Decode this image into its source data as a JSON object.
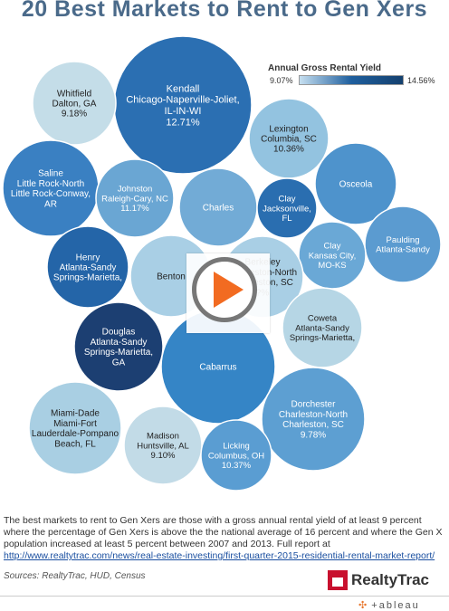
{
  "title": "20 Best Markets to Rent to Gen Xers",
  "legend": {
    "title": "Annual Gross Rental Yield",
    "min_label": "9.07%",
    "max_label": "14.56%"
  },
  "chart_data": {
    "type": "bubble",
    "title": "20 Best Markets to Rent to Gen Xers",
    "color_metric": "Annual Gross Rental Yield",
    "color_range": [
      9.07,
      14.56
    ],
    "color_low": "#c6dff0",
    "color_high": "#14406e",
    "bubbles": [
      {
        "lines": [
          "Kendall",
          "Chicago-Naperville-Joliet,",
          "IL-IN-WI",
          "12.71%"
        ],
        "color": "#2b6fb2",
        "yield": 12.71
      },
      {
        "lines": [
          "Whitfield",
          "Dalton, GA",
          "9.18%"
        ],
        "color": "#c4dde8",
        "yield": 9.18
      },
      {
        "lines": [
          "Lexington",
          "Columbia, SC",
          "10.36%"
        ],
        "color": "#93c3e0",
        "yield": 10.36
      },
      {
        "lines": [
          "Osceola"
        ],
        "color": "#4e93cc",
        "yield": null
      },
      {
        "lines": [
          "Saline",
          "Little Rock-North",
          "Little Rock-Conway,",
          "AR"
        ],
        "color": "#3a80c2",
        "yield": null
      },
      {
        "lines": [
          "Johnston",
          "Raleigh-Cary, NC",
          "11.17%"
        ],
        "color": "#6aa6d3",
        "yield": 11.17
      },
      {
        "lines": [
          "Charles"
        ],
        "color": "#72abd6",
        "yield": null
      },
      {
        "lines": [
          "Clay",
          "Jacksonville,",
          "FL"
        ],
        "color": "#2a6eb0",
        "yield": null
      },
      {
        "lines": [
          "Paulding",
          "Atlanta-Sandy"
        ],
        "color": "#5b9bd0",
        "yield": null
      },
      {
        "lines": [
          "Clay",
          "Kansas City,",
          "MO-KS"
        ],
        "color": "#6aa8d6",
        "yield": null
      },
      {
        "lines": [
          "Henry",
          "Atlanta-Sandy",
          "Springs-Marietta,"
        ],
        "color": "#2465a8",
        "yield": null
      },
      {
        "lines": [
          "Benton"
        ],
        "color": "#a9cfe5",
        "yield": null
      },
      {
        "lines": [
          "Berkeley",
          "Charleston-North",
          "Charleston, SC",
          "?%"
        ],
        "color": "#a9cfe5",
        "yield": null
      },
      {
        "lines": [
          "Coweta",
          "Atlanta-Sandy",
          "Springs-Marietta,"
        ],
        "color": "#b6d6e5",
        "yield": null
      },
      {
        "lines": [
          "Douglas",
          "Atlanta-Sandy",
          "Springs-Marietta,",
          "GA"
        ],
        "color": "#1c3f72",
        "yield": null
      },
      {
        "lines": [
          "Cabarrus"
        ],
        "color": "#3585c6",
        "yield": null
      },
      {
        "lines": [
          "Miami-Dade",
          "Miami-Fort",
          "Lauderdale-Pompano",
          "Beach, FL"
        ],
        "color": "#a9cfe3",
        "yield": null
      },
      {
        "lines": [
          "Dorchester",
          "Charleston-North",
          "Charleston, SC",
          "9.78%"
        ],
        "color": "#5d9fd2",
        "yield": 9.78
      },
      {
        "lines": [
          "Madison",
          "Huntsville, AL",
          "9.10%"
        ],
        "color": "#c2dbe7",
        "yield": 9.1
      },
      {
        "lines": [
          "Licking",
          "Columbus, OH",
          "10.37%"
        ],
        "color": "#5a9dd2",
        "yield": 10.37
      }
    ]
  },
  "description": {
    "text": "The best markets to rent to Gen Xers are those with a gross annual rental yield of at least 9 percent where the percentage of Gen Xers is above the the national average of 16 percent and where the Gen X population increased at least 5 percent between 2007 and 2013. Full report at ",
    "link": "http://www.realtytrac.com/news/real-estate-investing/first-quarter-2015-residential-rental-market-report/"
  },
  "sources": "Sources: RealtyTrac, HUD, Census",
  "logo": {
    "text": "RealtyTrac"
  },
  "footer": {
    "tableau": "+ableau",
    "tableau_icon": "✣"
  },
  "colors": {
    "title": "#4a6a8a",
    "play": "#f26b21",
    "realtytrac_red": "#c8102e"
  }
}
